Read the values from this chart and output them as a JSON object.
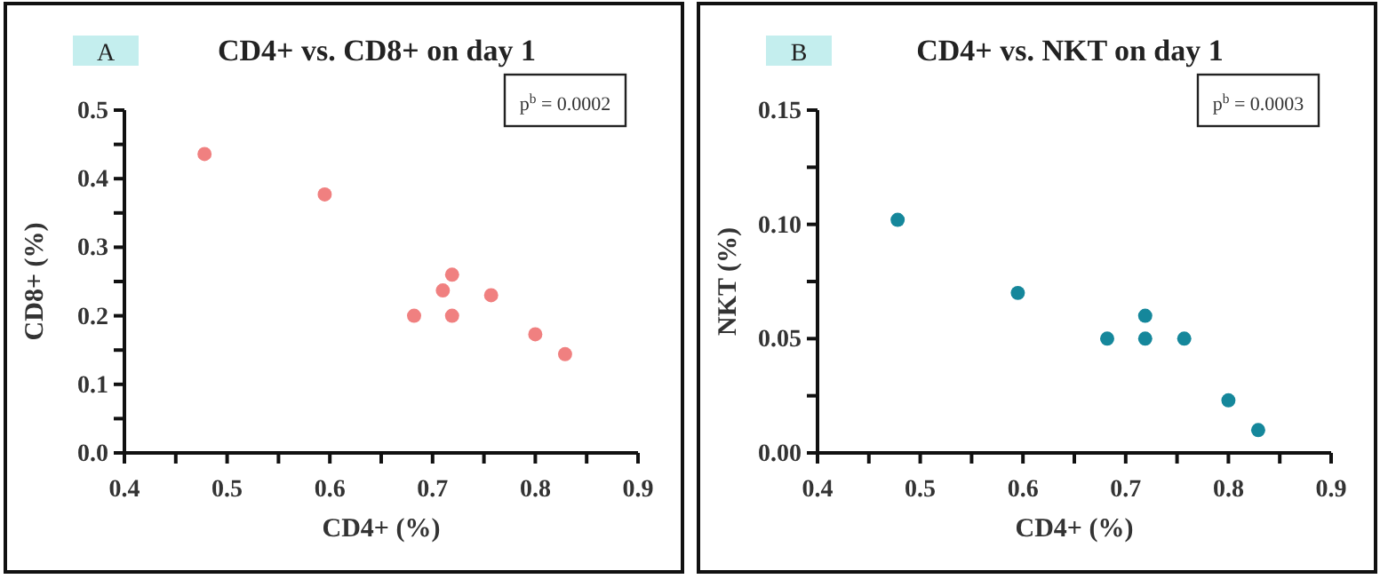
{
  "chart_data": [
    {
      "type": "scatter",
      "title": "CD4+ vs. CD8+ on day 1",
      "xlabel": "CD4+ (%)",
      "ylabel": "CD8+ (%)",
      "annotations": [
        "A",
        "p$^{b}$ = 0.0002"
      ],
      "x": [
        0.478,
        0.595,
        0.682,
        0.71,
        0.719,
        0.719,
        0.757,
        0.8,
        0.829
      ],
      "series": [
        {
          "color": "#f08080",
          "values": [
            0.436,
            0.377,
            0.2,
            0.237,
            0.26,
            0.2,
            0.23,
            0.173,
            0.144
          ]
        }
      ],
      "xlim": [
        0.4,
        0.9
      ],
      "ylim": [
        0,
        0.5
      ],
      "xticks": [
        0.4,
        {
          "value": 0.45,
          "label": null
        },
        0.5,
        {
          "value": 0.55,
          "label": null
        },
        0.6,
        {
          "value": 0.65,
          "label": null
        },
        0.7,
        {
          "value": 0.75,
          "label": null
        },
        0.8,
        {
          "value": 0.85,
          "label": null
        },
        0.9
      ],
      "yticks": [
        {
          "value": 0,
          "label": "0.0"
        },
        {
          "value": 0.05,
          "label": null
        },
        0.1,
        {
          "value": 0.15,
          "label": null
        },
        0.2,
        {
          "value": 0.25,
          "label": null
        },
        0.3,
        {
          "value": 0.35,
          "label": null
        },
        0.4,
        {
          "value": 0.45,
          "label": null
        },
        0.5
      ],
      "grid": false,
      "marker": "circle"
    },
    {
      "type": "scatter",
      "title": "CD4+ vs. NKT on day 1",
      "xlabel": "CD4+ (%)",
      "ylabel": "NKT (%)",
      "annotations": [
        "B",
        "p$^{b}$ = 0.0003"
      ],
      "x": [
        0.478,
        0.595,
        0.682,
        0.719,
        0.719,
        0.757,
        0.8,
        0.829
      ],
      "series": [
        {
          "color": "#15879b",
          "values": [
            0.102,
            0.07,
            0.05,
            0.06,
            0.05,
            0.05,
            0.023,
            0.01
          ]
        }
      ],
      "xlim": [
        0.4,
        0.9
      ],
      "ylim": [
        0,
        0.15
      ],
      "xticks": [
        0.4,
        {
          "value": 0.45,
          "label": null
        },
        0.5,
        {
          "value": 0.55,
          "label": null
        },
        0.6,
        {
          "value": 0.65,
          "label": null
        },
        0.7,
        {
          "value": 0.75,
          "label": null
        },
        0.8,
        {
          "value": 0.85,
          "label": null
        },
        0.9
      ],
      "yticks": [
        {
          "value": 0,
          "label": "0.00"
        },
        {
          "value": 0.025,
          "label": null
        },
        {
          "value": 0.05,
          "label": "0.05"
        },
        {
          "value": 0.075,
          "label": null
        },
        {
          "value": 0.1,
          "label": "0.10"
        },
        {
          "value": 0.125,
          "label": null
        },
        0.15
      ],
      "grid": false,
      "marker": "circle"
    }
  ]
}
